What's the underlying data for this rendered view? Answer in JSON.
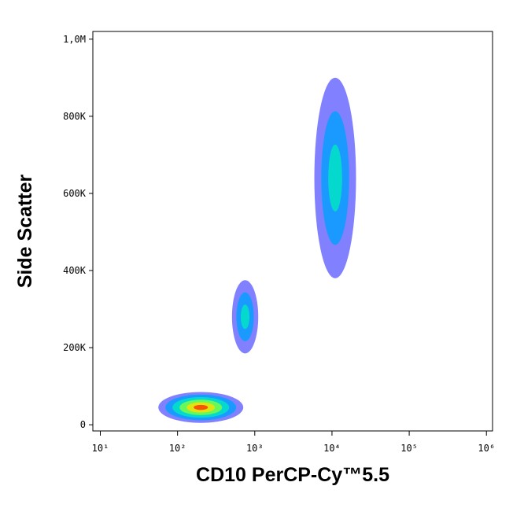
{
  "chart_data": {
    "type": "density",
    "x_label": "CD10 PerCP-Cy™5.5",
    "y_label": "Side Scatter",
    "xscale": "log",
    "xlim": [
      8,
      1200000
    ],
    "ylim": [
      -16000,
      1020000
    ],
    "xticks": [
      {
        "value": 10,
        "label": "10¹"
      },
      {
        "value": 100,
        "label": "10²"
      },
      {
        "value": 1000,
        "label": "10³"
      },
      {
        "value": 10000,
        "label": "10⁴"
      },
      {
        "value": 100000,
        "label": "10⁵"
      },
      {
        "value": 1000000,
        "label": "10⁶"
      }
    ],
    "yticks": [
      0,
      {
        "value": 200000,
        "label": "200K"
      },
      {
        "value": 400000,
        "label": "400K"
      },
      {
        "value": 600000,
        "label": "600K"
      },
      {
        "value": 800000,
        "label": "800K"
      },
      {
        "value": 1000000,
        "label": "1,0M"
      }
    ],
    "palette": [
      "#1a1aff",
      "#00a0ff",
      "#00e8c0",
      "#80ff40",
      "#ffe000",
      "#ff3000"
    ],
    "populations": [
      {
        "x": 200,
        "y": 45000,
        "sx": 0.55,
        "sy": 40000,
        "levels": 6
      },
      {
        "x": 750,
        "y": 280000,
        "sx": 0.17,
        "sy": 95000,
        "levels": 3
      },
      {
        "x": 11000,
        "y": 640000,
        "sx": 0.27,
        "sy": 260000,
        "levels": 3
      }
    ]
  }
}
